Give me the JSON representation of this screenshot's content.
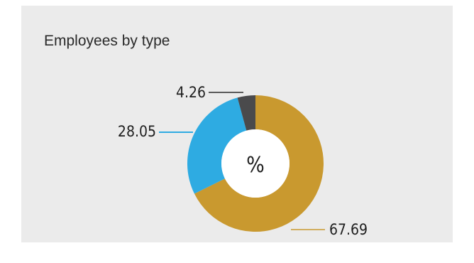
{
  "chart_data": {
    "type": "pie",
    "variant": "donut",
    "title": "Employees by type",
    "center_label": "%",
    "slices": [
      {
        "value": 67.69,
        "label": "67.69",
        "color": "#c9992f"
      },
      {
        "value": 28.05,
        "label": "28.05",
        "color": "#2eabe2"
      },
      {
        "value": 4.26,
        "label": "4.26",
        "color": "#4a4a4c"
      }
    ],
    "legend": "none"
  }
}
